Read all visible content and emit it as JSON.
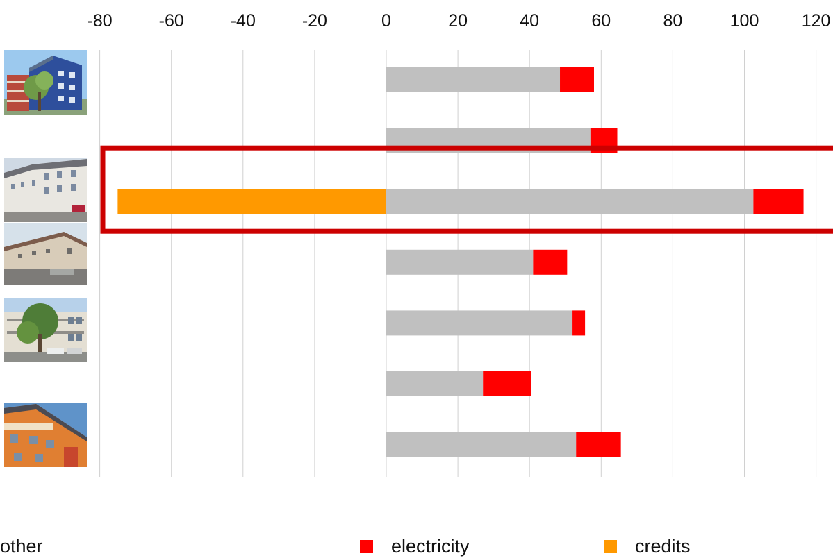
{
  "chart_data": {
    "type": "bar",
    "orientation": "horizontal",
    "stacked": true,
    "x_ticks": [
      "-80",
      "-60",
      "-40",
      "-20",
      "0",
      "20",
      "40",
      "60",
      "80",
      "100",
      "120"
    ],
    "xlim": [
      -80,
      120
    ],
    "grid": "vertical",
    "highlighted_category_index": 2,
    "series": [
      {
        "name": "other",
        "color": "#c0c0c0",
        "values": [
          48.5,
          57,
          102.5,
          41,
          52,
          27,
          53
        ]
      },
      {
        "name": "electricity",
        "color": "#ff0000",
        "values": [
          9.5,
          7.5,
          14,
          9.5,
          3.5,
          13.5,
          12.5
        ]
      },
      {
        "name": "credits",
        "color": "#ff9900",
        "values": [
          0,
          0,
          -75,
          0,
          0,
          0,
          0
        ]
      }
    ],
    "highlight_color": "#cc0000"
  },
  "thumbnails": [
    {
      "icon": "blue-apartment-building-photo"
    },
    {
      "icon": "white-apartment-block-photo"
    },
    {
      "icon": "beige-terraced-house-photo"
    },
    {
      "icon": "modern-apartment-with-tree-photo"
    },
    {
      "icon": "orange-facade-solar-roof-photo"
    }
  ]
}
